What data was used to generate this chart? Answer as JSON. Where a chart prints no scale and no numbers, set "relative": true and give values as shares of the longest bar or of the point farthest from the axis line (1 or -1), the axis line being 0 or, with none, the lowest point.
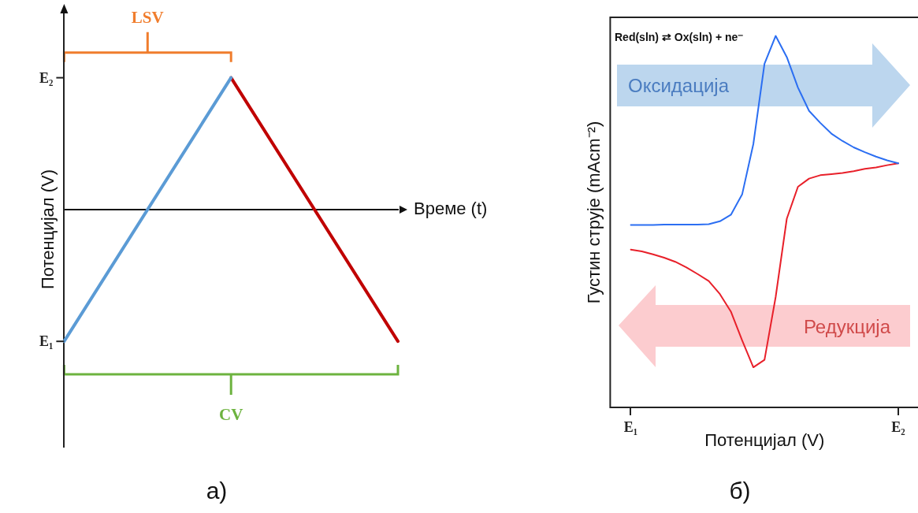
{
  "chart_data": [
    {
      "type": "line",
      "title": "а)",
      "xlabel": "Време (t)",
      "ylabel": "Потенцијал (V)",
      "categories": [
        null,
        null,
        null
      ],
      "relative": true,
      "series": [
        {
          "color": "#5b9bd5",
          "values": [
            -1,
            1,
            null
          ]
        },
        {
          "color": "#c00000",
          "values": [
            null,
            1,
            -1
          ]
        }
      ],
      "annotations": [
        "LSV",
        "CV",
        "E₁",
        "E₂"
      ],
      "grid": false,
      "legend": false,
      "marker": "none",
      "line_style": "solid"
    },
    {
      "type": "line",
      "title": "б)",
      "xlabel": "Потенцијал (V)",
      "ylabel": "Густин струје (mAcm⁻²)",
      "relative": true,
      "categories": [
        "E₁",
        null,
        null,
        null,
        null,
        null,
        null,
        null,
        null,
        null,
        null,
        null,
        null,
        null,
        null,
        null,
        null,
        null,
        null,
        null,
        null,
        null,
        null,
        null,
        "E₂"
      ],
      "series": [
        {
          "color": "#2b6ef2",
          "values": [
            0.491,
            0.491,
            0.491,
            0.492,
            0.492,
            0.492,
            0.492,
            0.493,
            0.501,
            0.519,
            0.574,
            0.709,
            0.925,
            1,
            0.943,
            0.861,
            0.798,
            0.766,
            0.737,
            0.717,
            0.7,
            0.687,
            0.675,
            0.665,
            0.657
          ]
        },
        {
          "color": "#e8202a",
          "values": [
            0.425,
            0.42,
            0.412,
            0.403,
            0.392,
            0.377,
            0.359,
            0.34,
            0.305,
            0.257,
            0.18,
            0.108,
            0.128,
            0.297,
            0.508,
            0.594,
            0.616,
            0.625,
            0.628,
            0.631,
            0.636,
            0.642,
            0.646,
            0.652,
            0.657
          ]
        }
      ],
      "annotations": [
        "Red(sln) ⇄ Ox(sln) + ne⁻",
        "Оксидација",
        "Редукција"
      ],
      "grid": false,
      "legend": false,
      "marker": "none",
      "line_style": "solid"
    }
  ]
}
